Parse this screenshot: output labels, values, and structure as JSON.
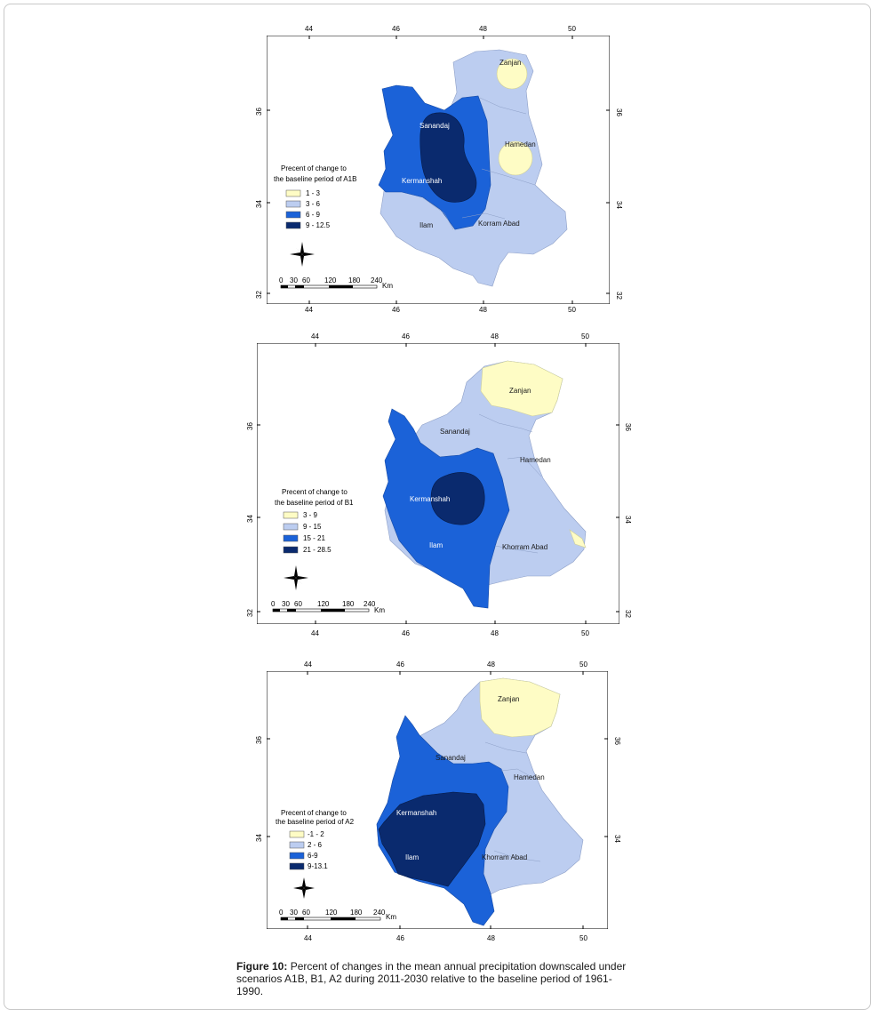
{
  "colors": {
    "class1": "#fefcc5",
    "class2": "#bccdf0",
    "class3": "#1b62d8",
    "class4": "#0a2a6e",
    "frame": "#000000"
  },
  "maps": [
    {
      "id": "a1b",
      "top_ticks": [
        "44",
        "46",
        "48",
        "50"
      ],
      "bottom_ticks": [
        "44",
        "46",
        "48",
        "50"
      ],
      "left_ticks": [
        "36",
        "34",
        "32"
      ],
      "right_ticks": [
        "36",
        "34",
        "32"
      ],
      "regions": [
        "Zanjan",
        "Sanandaj",
        "Hamedan",
        "Kermanshah",
        "Ilam",
        "Korram Abad"
      ],
      "legend": {
        "title_line1": "Precent of change to",
        "title_line2": "the baseline period of A1B",
        "classes": [
          "1 - 3",
          "3 - 6",
          "6 - 9",
          "9 - 12.5"
        ]
      },
      "scale": {
        "labels": [
          "0",
          "30",
          "60",
          "120",
          "180",
          "240"
        ],
        "unit": "Km"
      }
    },
    {
      "id": "b1",
      "top_ticks": [
        "44",
        "46",
        "48",
        "50"
      ],
      "bottom_ticks": [
        "44",
        "46",
        "48",
        "50"
      ],
      "left_ticks": [
        "36",
        "34",
        "32"
      ],
      "right_ticks": [
        "36",
        "34",
        "32"
      ],
      "regions": [
        "Zanjan",
        "Sanandaj",
        "Hamedan",
        "Kermanshah",
        "Ilam",
        "Khorram Abad"
      ],
      "legend": {
        "title_line1": "Precent of change to",
        "title_line2": "the baseline period of B1",
        "classes": [
          "3 - 9",
          "9 - 15",
          "15 - 21",
          "21 - 28.5"
        ]
      },
      "scale": {
        "labels": [
          "0",
          "30",
          "60",
          "120",
          "180",
          "240"
        ],
        "unit": "Km"
      }
    },
    {
      "id": "a2",
      "top_ticks": [
        "44",
        "46",
        "48",
        "50"
      ],
      "bottom_ticks": [
        "44",
        "46",
        "48",
        "50"
      ],
      "left_ticks": [
        "36",
        "34"
      ],
      "right_ticks": [
        "36",
        "34"
      ],
      "regions": [
        "Zanjan",
        "Sanandaj",
        "Hamedan",
        "Kermanshah",
        "Ilam",
        "Khorram Abad"
      ],
      "legend": {
        "title_line1": "Precent of change to",
        "title_line2": "the baseline period of A2",
        "classes": [
          "-1 - 2",
          "2 - 6",
          "6-9",
          "9-13.1"
        ]
      },
      "scale": {
        "labels": [
          "0",
          "30",
          "60",
          "120",
          "180",
          "240"
        ],
        "unit": "Km"
      }
    }
  ],
  "caption": {
    "label": "Figure 10:",
    "text": " Percent of changes in the mean annual precipitation downscaled under scenarios A1B, B1, A2 during 2011-2030 relative to the baseline period of 1961-1990."
  }
}
